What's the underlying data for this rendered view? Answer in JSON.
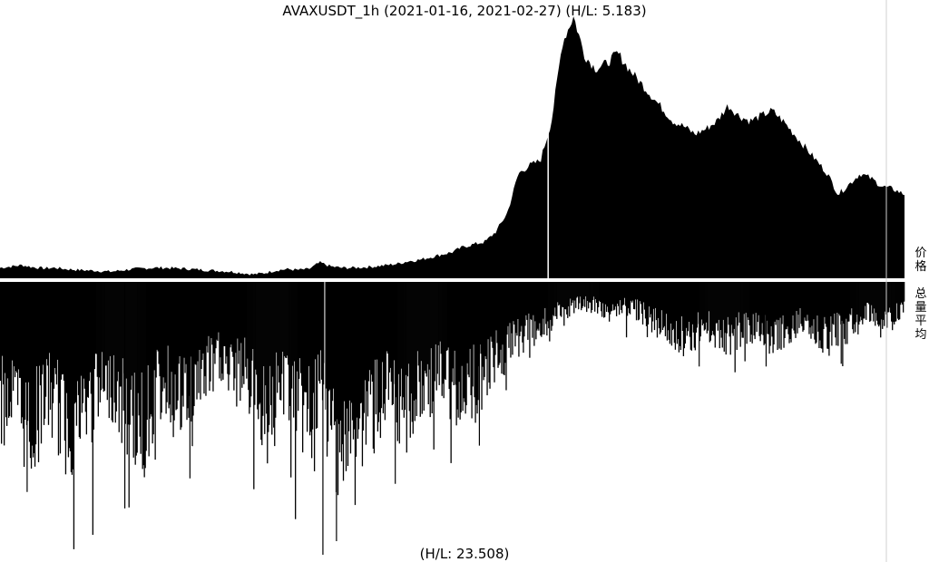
{
  "chart_data": {
    "type": "area",
    "title": "AVAXUSDT_1h (2021-01-16, 2021-02-27) (H/L: 5.183)",
    "bottom_label": "(H/L: 23.508)",
    "price_label": "价格",
    "volume_label": "总量平均",
    "x_range": [
      "2021-01-16",
      "2021-02-27"
    ],
    "price": {
      "name": "价格",
      "hl_ratio": 5.183,
      "y_unit": "relative",
      "ylim": [
        0,
        1
      ],
      "values": [
        0.04,
        0.045,
        0.05,
        0.042,
        0.038,
        0.04,
        0.035,
        0.032,
        0.03,
        0.028,
        0.025,
        0.03,
        0.035,
        0.038,
        0.04,
        0.04,
        0.038,
        0.036,
        0.033,
        0.03,
        0.028,
        0.025,
        0.02,
        0.015,
        0.02,
        0.03,
        0.035,
        0.032,
        0.035,
        0.06,
        0.045,
        0.04,
        0.04,
        0.042,
        0.045,
        0.05,
        0.055,
        0.065,
        0.07,
        0.08,
        0.09,
        0.1,
        0.12,
        0.13,
        0.14,
        0.18,
        0.25,
        0.4,
        0.43,
        0.45,
        0.6,
        0.9,
        1.0,
        0.85,
        0.8,
        0.82,
        0.86,
        0.8,
        0.75,
        0.7,
        0.65,
        0.6,
        0.58,
        0.55,
        0.57,
        0.6,
        0.66,
        0.62,
        0.6,
        0.62,
        0.64,
        0.6,
        0.55,
        0.5,
        0.45,
        0.4,
        0.32,
        0.36,
        0.4,
        0.38,
        0.35,
        0.34,
        0.32
      ],
      "spike_index": 0.606
    },
    "volume": {
      "name": "总量平均",
      "hl_ratio": 23.508,
      "direction": "downward",
      "ylim": [
        0,
        1
      ],
      "values": [
        0.5,
        0.45,
        0.55,
        0.6,
        0.45,
        0.5,
        0.6,
        0.55,
        0.5,
        0.45,
        0.4,
        0.5,
        0.55,
        0.6,
        0.45,
        0.4,
        0.5,
        0.45,
        0.4,
        0.35,
        0.3,
        0.4,
        0.35,
        0.45,
        0.5,
        0.45,
        0.4,
        0.5,
        0.55,
        0.45,
        0.6,
        0.65,
        0.7,
        0.55,
        0.5,
        0.45,
        0.55,
        0.5,
        0.45,
        0.4,
        0.38,
        0.45,
        0.4,
        0.42,
        0.35,
        0.3,
        0.28,
        0.22,
        0.2,
        0.18,
        0.15,
        0.12,
        0.1,
        0.09,
        0.1,
        0.12,
        0.11,
        0.1,
        0.12,
        0.15,
        0.18,
        0.2,
        0.22,
        0.2,
        0.18,
        0.2,
        0.22,
        0.2,
        0.18,
        0.2,
        0.22,
        0.2,
        0.18,
        0.15,
        0.2,
        0.22,
        0.2,
        0.18,
        0.15,
        0.12,
        0.15,
        0.14,
        0.12
      ],
      "spikes": [
        {
          "x": 0.357,
          "v": 1.0
        },
        {
          "x": 0.372,
          "v": 0.95
        },
        {
          "x": 0.138,
          "v": 0.83
        },
        {
          "x": 0.03,
          "v": 0.77
        },
        {
          "x": 0.21,
          "v": 0.72
        },
        {
          "x": 0.437,
          "v": 0.74
        },
        {
          "x": 0.53,
          "v": 0.6
        },
        {
          "x": 0.773,
          "v": 0.31
        },
        {
          "x": 0.847,
          "v": 0.31
        },
        {
          "x": 0.93,
          "v": 0.3
        }
      ]
    }
  }
}
